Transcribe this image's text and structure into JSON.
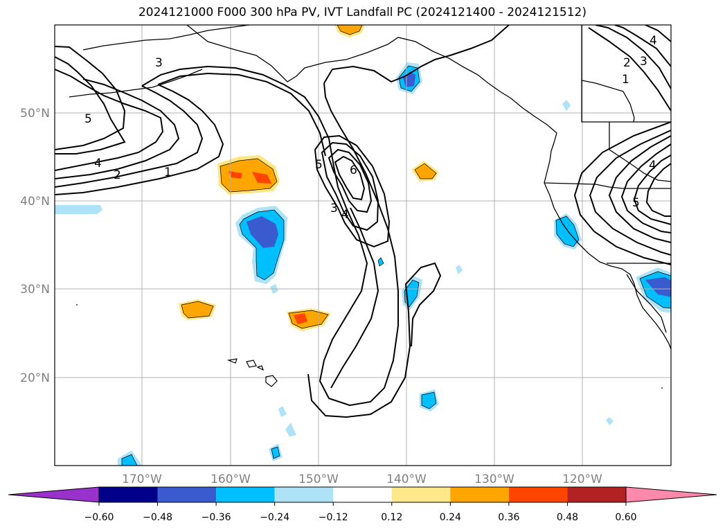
{
  "title": "2024121000 F000 300 hPa PV, IVT Landfall PC (2024121400 - 2024121512)",
  "map": {
    "lat_labels": [
      "50°N",
      "40°N",
      "30°N",
      "20°N"
    ],
    "lon_labels": [
      "170°W",
      "160°W",
      "150°W",
      "140°W",
      "130°W",
      "120°W"
    ],
    "contour_labels": [
      "5",
      "3",
      "4",
      "2",
      "1",
      "5",
      "6",
      "3",
      "4",
      "4",
      "3",
      "2",
      "1",
      "4",
      "5"
    ],
    "field_colors": {
      "neg_strong": "#3a5bd0",
      "neg_mid": "#00bfff",
      "neg_weak": "#aee2f7",
      "pos_weak": "#ffe680",
      "pos_mid": "#ffa500",
      "pos_strong": "#ff4500"
    }
  },
  "colorbar": {
    "ticks": [
      "−0.60",
      "−0.48",
      "−0.36",
      "−0.24",
      "−0.12",
      "0.12",
      "0.24",
      "0.36",
      "0.48",
      "0.60"
    ],
    "colors": [
      "#9932cc",
      "#00008b",
      "#3a5bd0",
      "#00bfff",
      "#aee2f7",
      "#ffffff",
      "#ffe88a",
      "#ffa500",
      "#ff4500",
      "#b22222",
      "#ff89ac"
    ]
  }
}
